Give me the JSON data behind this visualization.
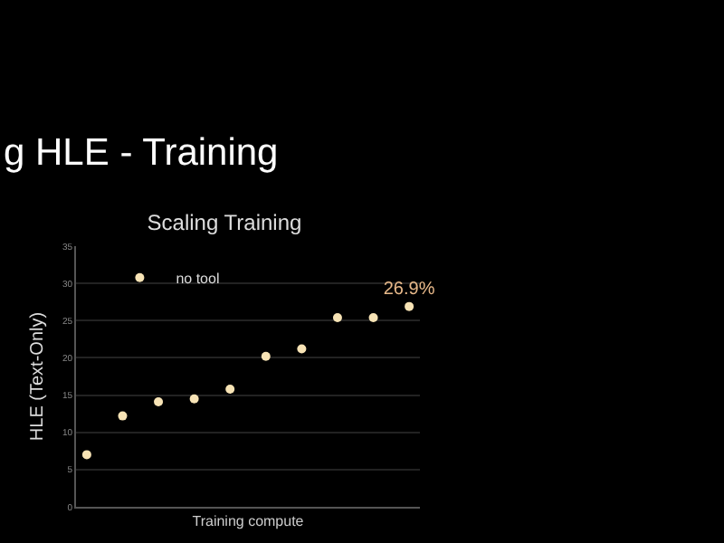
{
  "chart_data": {
    "type": "scatter",
    "title": "Scaling Training",
    "xlabel": "Training compute",
    "ylabel": "HLE (Text-Only)",
    "annotations": [
      "g HLE - Training"
    ],
    "categories": [
      null,
      null,
      null,
      null,
      null,
      null,
      null,
      null,
      null,
      null
    ],
    "series": [
      {
        "name": "no tool",
        "color": "#f7e3b5",
        "values": [
          7.0,
          12.2,
          14.1,
          14.5,
          15.8,
          20.2,
          21.2,
          25.4,
          25.4,
          26.9
        ],
        "value_labels": [
          null,
          null,
          null,
          null,
          null,
          null,
          null,
          null,
          null,
          "26.9%"
        ]
      }
    ],
    "ylim": [
      0,
      35
    ],
    "yticks": [
      0,
      5,
      10,
      15,
      20,
      25,
      30,
      35
    ],
    "grid": true,
    "legend": "top left",
    "marker": "circle"
  }
}
